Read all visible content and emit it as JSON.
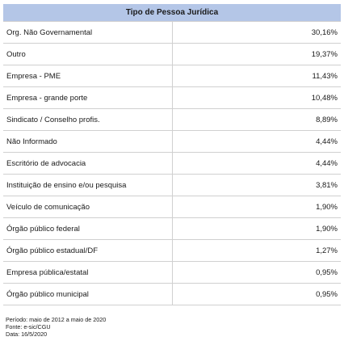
{
  "table": {
    "header": "Tipo de Pessoa Jurídica",
    "header_bg": "#b4c6e7",
    "rows": [
      {
        "label": "Org. Não Governamental",
        "value": "30,16%"
      },
      {
        "label": "Outro",
        "value": "19,37%"
      },
      {
        "label": "Empresa - PME",
        "value": "11,43%"
      },
      {
        "label": "Empresa - grande porte",
        "value": "10,48%"
      },
      {
        "label": "Sindicato / Conselho profis.",
        "value": "8,89%"
      },
      {
        "label": "Não Informado",
        "value": "4,44%"
      },
      {
        "label": "Escritório de advocacia",
        "value": "4,44%"
      },
      {
        "label": "Instituição de ensino e/ou pesquisa",
        "value": "3,81%"
      },
      {
        "label": "Veículo de comunicação",
        "value": "1,90%"
      },
      {
        "label": "Órgão público federal",
        "value": "1,90%"
      },
      {
        "label": "Órgão público estadual/DF",
        "value": "1,27%"
      },
      {
        "label": "Empresa pública/estatal",
        "value": "0,95%"
      },
      {
        "label": "Órgão público municipal",
        "value": "0,95%"
      }
    ]
  },
  "footnotes": {
    "period": "Período: maio de 2012 a maio de 2020",
    "source": "Fonte: e-sic/CGU",
    "date": "Data: 16/5/2020"
  }
}
